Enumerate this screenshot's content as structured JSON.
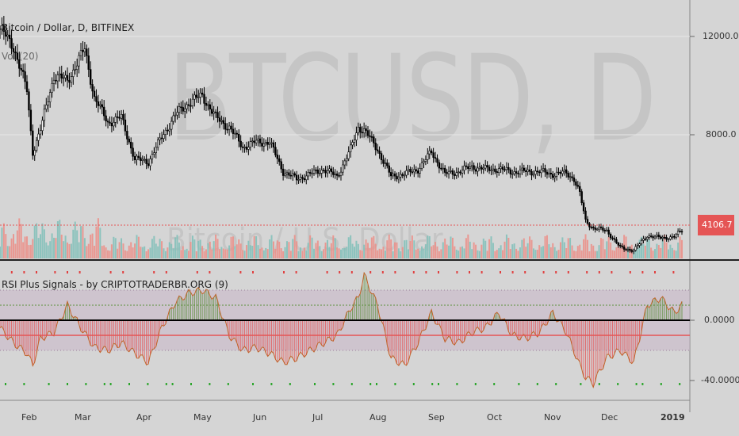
{
  "watermark": {
    "ticker": "BTCUSD, D",
    "name": "Bitcoin / U.S. Dollar"
  },
  "header": {
    "title": "Bitcoin / Dollar, D, BITFINEX",
    "indicator": "Vol (20)"
  },
  "price_pane": {
    "axis_ticks": [
      "12000.0",
      "8000.0"
    ],
    "current_price": "4106.7",
    "price_line_color": "#e55555"
  },
  "rsi_pane": {
    "title": "RSI Plus Signals - by CRIPTOTRADERBR.ORG (9)",
    "axis_ticks": [
      "0.0000",
      "-40.0000"
    ]
  },
  "time_axis": {
    "labels": [
      "Feb",
      "Mar",
      "Apr",
      "May",
      "Jun",
      "Jul",
      "Aug",
      "Sep",
      "Oct",
      "Nov",
      "Dec",
      "2019"
    ],
    "highlight": "2019"
  },
  "colors": {
    "background": "#d5d5d5",
    "candle": "#000000",
    "volume_up": "#7fbfb9",
    "volume_down": "#ec8d86",
    "rsi_positive": "#5a8f3a",
    "rsi_negative": "#e55555",
    "rsi_band": "#c9b6c9",
    "signal_buy": "#2aa52a",
    "signal_sell": "#e04040"
  },
  "chart_data": [
    {
      "type": "line",
      "title": "Bitcoin / Dollar, D, BITFINEX",
      "xlabel": "",
      "ylabel": "",
      "x": [
        "2018-01-20",
        "2018-01-27",
        "2018-02-03",
        "2018-02-06",
        "2018-02-10",
        "2018-02-17",
        "2018-02-24",
        "2018-03-03",
        "2018-03-05",
        "2018-03-10",
        "2018-03-17",
        "2018-03-24",
        "2018-03-31",
        "2018-04-07",
        "2018-04-14",
        "2018-04-21",
        "2018-04-28",
        "2018-05-05",
        "2018-05-12",
        "2018-05-19",
        "2018-05-26",
        "2018-06-02",
        "2018-06-09",
        "2018-06-16",
        "2018-06-23",
        "2018-06-30",
        "2018-07-07",
        "2018-07-14",
        "2018-07-21",
        "2018-07-25",
        "2018-07-28",
        "2018-08-04",
        "2018-08-11",
        "2018-08-18",
        "2018-08-25",
        "2018-09-01",
        "2018-09-08",
        "2018-09-15",
        "2018-09-22",
        "2018-09-29",
        "2018-10-06",
        "2018-10-13",
        "2018-10-20",
        "2018-10-27",
        "2018-11-03",
        "2018-11-10",
        "2018-11-14",
        "2018-11-17",
        "2018-11-20",
        "2018-11-24",
        "2018-12-01",
        "2018-12-08",
        "2018-12-15",
        "2018-12-22",
        "2018-12-29",
        "2019-01-05",
        "2019-01-09"
      ],
      "y": [
        12300,
        11600,
        9800,
        7300,
        8200,
        10400,
        10200,
        11200,
        11500,
        9500,
        8500,
        8700,
        7000,
        6900,
        7900,
        8800,
        9300,
        9600,
        8700,
        8300,
        7500,
        7700,
        7700,
        6500,
        6200,
        6400,
        6600,
        6300,
        7400,
        8300,
        8200,
        7400,
        6300,
        6400,
        6600,
        7300,
        6400,
        6500,
        6700,
        6600,
        6600,
        6500,
        6500,
        6500,
        6400,
        6450,
        6200,
        5600,
        4500,
        4200,
        4100,
        3400,
        3300,
        3900,
        3800,
        3850,
        4106.7
      ],
      "ylim": [
        3000,
        13400
      ],
      "axis_ticks": [
        12000,
        8000
      ],
      "grid": true
    },
    {
      "type": "bar",
      "title": "Vol (20)",
      "note": "daily volume bars, colored by up/down day"
    },
    {
      "type": "area",
      "title": "RSI Plus Signals - by CRIPTOTRADERBR.ORG (9)",
      "x": [
        "2018-01-20",
        "2018-01-27",
        "2018-02-03",
        "2018-02-06",
        "2018-02-10",
        "2018-02-17",
        "2018-02-24",
        "2018-03-03",
        "2018-03-10",
        "2018-03-17",
        "2018-03-24",
        "2018-03-31",
        "2018-04-07",
        "2018-04-14",
        "2018-04-21",
        "2018-04-28",
        "2018-05-05",
        "2018-05-12",
        "2018-05-19",
        "2018-05-26",
        "2018-06-02",
        "2018-06-09",
        "2018-06-16",
        "2018-06-23",
        "2018-06-30",
        "2018-07-07",
        "2018-07-14",
        "2018-07-21",
        "2018-07-25",
        "2018-07-28",
        "2018-08-04",
        "2018-08-11",
        "2018-08-18",
        "2018-08-25",
        "2018-09-01",
        "2018-09-08",
        "2018-09-15",
        "2018-09-22",
        "2018-09-29",
        "2018-10-06",
        "2018-10-13",
        "2018-10-20",
        "2018-10-27",
        "2018-11-03",
        "2018-11-10",
        "2018-11-17",
        "2018-11-20",
        "2018-11-24",
        "2018-12-01",
        "2018-12-08",
        "2018-12-15",
        "2018-12-22",
        "2018-12-29",
        "2019-01-05",
        "2019-01-09"
      ],
      "y": [
        -5,
        -15,
        -22,
        -30,
        -12,
        -8,
        10,
        -5,
        -18,
        -20,
        -15,
        -22,
        -28,
        -5,
        12,
        18,
        20,
        15,
        -10,
        -20,
        -18,
        -22,
        -28,
        -25,
        -20,
        -15,
        -10,
        8,
        15,
        30,
        10,
        -25,
        -30,
        -15,
        5,
        -12,
        -15,
        -8,
        -5,
        5,
        -10,
        -12,
        -8,
        5,
        -8,
        -30,
        -38,
        -42,
        -25,
        -20,
        -28,
        10,
        15,
        5,
        10
      ],
      "ylim": [
        -46,
        32
      ],
      "axis_ticks": [
        0,
        -40
      ],
      "levels": [
        20,
        10,
        -10,
        -20
      ]
    }
  ]
}
